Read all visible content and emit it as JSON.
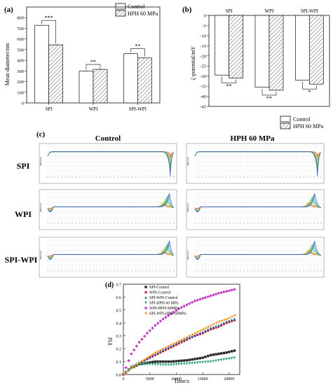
{
  "panels": {
    "a": {
      "label": "(a)",
      "legend": [
        "Control",
        "HPH 60 MPa"
      ],
      "chart_data": {
        "type": "bar",
        "ylabel": "Mean diameter/nm",
        "ylim": [
          0,
          900
        ],
        "yticks": [
          0,
          100,
          200,
          300,
          400,
          500,
          600,
          700,
          800
        ],
        "categories": [
          "SPI",
          "WPI",
          "SPI-WPI"
        ],
        "series": [
          {
            "name": "Control",
            "values": [
              728,
              298,
              462
            ]
          },
          {
            "name": "HPH 60 MPa",
            "values": [
              545,
              315,
              422
            ]
          }
        ],
        "significance": [
          "***",
          "**",
          "**"
        ]
      }
    },
    "b": {
      "label": "(b)",
      "legend": [
        "Control",
        "HPH 60 MPa"
      ],
      "chart_data": {
        "type": "bar",
        "ylabel": "ζ-potential/mV",
        "ylim": [
          -45,
          0
        ],
        "yticks": [
          0,
          -5,
          -10,
          -15,
          -20,
          -25,
          -30,
          -35,
          -40,
          -45
        ],
        "categories": [
          "SPI",
          "WPI",
          "SPI-WPI"
        ],
        "series": [
          {
            "name": "Control",
            "values": [
              -29.5,
              -35.5,
              -32
            ]
          },
          {
            "name": "HPH 60 MPa",
            "values": [
              -31,
              -37,
              -34
            ]
          }
        ],
        "significance": [
          "**",
          "**",
          "*"
        ]
      }
    },
    "c": {
      "label": "(c)",
      "col_titles": [
        "Control",
        "HPH 60 MPa"
      ],
      "row_labels": [
        "SPI",
        "WPI",
        "SPI-WPI"
      ],
      "ylabel": "ΔBS (%)",
      "xtick_count": 36,
      "colors": [
        "#e31a1c",
        "#ff7f00",
        "#ffd92f",
        "#b2df4a",
        "#33cc66",
        "#1fb5a8",
        "#2b8cbe",
        "#3b4cc0"
      ]
    },
    "d": {
      "label": "(d)",
      "chart_data": {
        "type": "scatter",
        "xlabel": "Time/s",
        "ylabel": "TSI",
        "xlim": [
          0,
          22000
        ],
        "ylim": [
          0,
          0.7
        ],
        "xticks": [
          0,
          5000,
          10000,
          15000,
          20000
        ],
        "yticks": [
          0.0,
          0.1,
          0.2,
          0.3,
          0.4,
          0.5,
          0.6,
          0.7
        ],
        "x": [
          0,
          1500,
          3000,
          4500,
          6000,
          7500,
          9000,
          10500,
          12000,
          13500,
          15000,
          16500,
          18000,
          19500,
          21000
        ],
        "series": [
          {
            "name": "SPI-Control",
            "color": "#222222",
            "marker": "square",
            "values": [
              0.0,
              0.05,
              0.08,
              0.09,
              0.1,
              0.1,
              0.1,
              0.105,
              0.11,
              0.12,
              0.13,
              0.15,
              0.16,
              0.17,
              0.185
            ]
          },
          {
            "name": "WPI-Control",
            "color": "#e41a1c",
            "marker": "circle",
            "values": [
              0.0,
              0.05,
              0.09,
              0.12,
              0.15,
              0.18,
              0.21,
              0.24,
              0.27,
              0.3,
              0.32,
              0.35,
              0.37,
              0.4,
              0.42
            ]
          },
          {
            "name": "SPI-WPI-Control",
            "color": "#1f5fbf",
            "marker": "triangle-up",
            "values": [
              0.0,
              0.05,
              0.09,
              0.12,
              0.155,
              0.19,
              0.22,
              0.25,
              0.28,
              0.3,
              0.33,
              0.36,
              0.38,
              0.41,
              0.43
            ]
          },
          {
            "name": "SPI-HPH 60 MPa",
            "color": "#1a9e77",
            "marker": "triangle-down",
            "values": [
              0.0,
              0.06,
              0.08,
              0.08,
              0.08,
              0.075,
              0.075,
              0.08,
              0.085,
              0.09,
              0.095,
              0.1,
              0.11,
              0.12,
              0.13
            ]
          },
          {
            "name": "WPI-HPH 60MPa",
            "color": "#cc33cc",
            "marker": "diamond",
            "values": [
              0.0,
              0.16,
              0.25,
              0.32,
              0.38,
              0.43,
              0.47,
              0.51,
              0.54,
              0.57,
              0.59,
              0.61,
              0.63,
              0.645,
              0.66
            ]
          },
          {
            "name": "SPI-WPI-HPH 60MPa",
            "color": "#ff8c00",
            "marker": "triangle-left",
            "values": [
              0.0,
              0.05,
              0.09,
              0.13,
              0.17,
              0.2,
              0.23,
              0.26,
              0.29,
              0.32,
              0.35,
              0.38,
              0.41,
              0.43,
              0.46
            ]
          }
        ]
      }
    }
  }
}
